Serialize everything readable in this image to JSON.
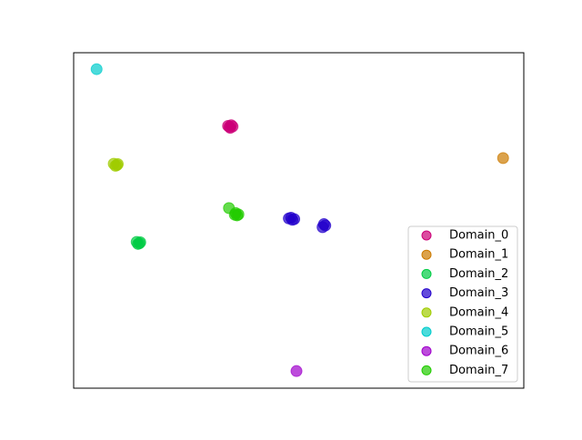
{
  "chart_data": {
    "type": "scatter",
    "xlim": [
      0,
      100
    ],
    "ylim": [
      0,
      100
    ],
    "legend": "lower right",
    "series": [
      {
        "name": "Domain_0",
        "color": "#cc0077",
        "x": [
          34.3,
          35.3,
          34.8,
          35.0,
          34.6
        ],
        "values": [
          78.2,
          78.0,
          77.6,
          78.4,
          77.9
        ]
      },
      {
        "name": "Domain_1",
        "color": "#cc7a00",
        "x": [
          95.4
        ],
        "values": [
          68.6
        ]
      },
      {
        "name": "Domain_2",
        "color": "#00cc44",
        "x": [
          14.0,
          14.6,
          14.3,
          14.8
        ],
        "values": [
          43.6,
          43.2,
          43.0,
          43.5
        ]
      },
      {
        "name": "Domain_3",
        "color": "#2200cc",
        "x": [
          47.8,
          48.6,
          48.3,
          49.0,
          55.3,
          55.9,
          55.6
        ],
        "values": [
          50.6,
          50.2,
          50.8,
          50.4,
          48.0,
          48.5,
          48.9
        ]
      },
      {
        "name": "Domain_4",
        "color": "#a0cc00",
        "x": [
          8.9,
          9.6,
          9.3,
          9.8
        ],
        "values": [
          66.9,
          66.5,
          66.3,
          66.8
        ]
      },
      {
        "name": "Domain_5",
        "color": "#00cccc",
        "x": [
          5.1
        ],
        "values": [
          95.1
        ]
      },
      {
        "name": "Domain_6",
        "color": "#a000cc",
        "x": [
          49.5
        ],
        "values": [
          5.1
        ]
      },
      {
        "name": "Domain_7",
        "color": "#22cc00",
        "x": [
          34.5,
          36.0,
          36.6,
          36.3,
          35.8
        ],
        "values": [
          53.7,
          52.2,
          51.8,
          51.5,
          51.7
        ]
      }
    ]
  }
}
